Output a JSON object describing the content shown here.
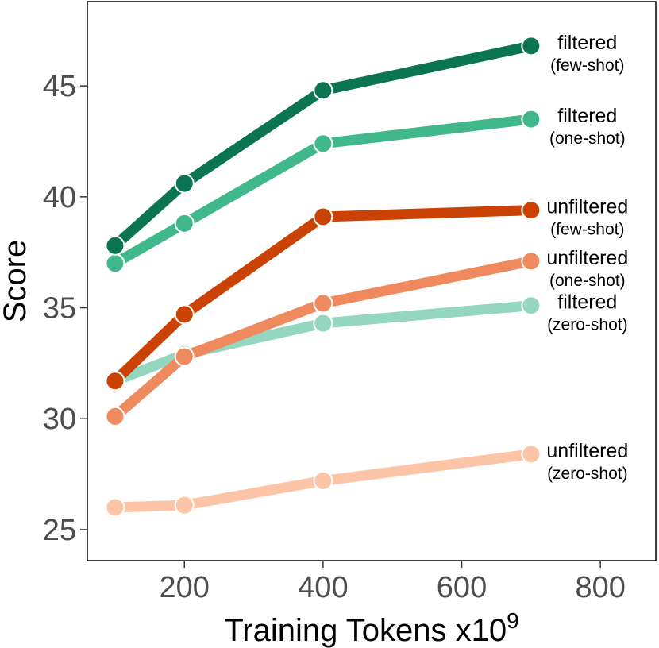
{
  "chart_data": {
    "type": "line",
    "xlabel": "Training Tokens x10",
    "xlabel_superscript": "9",
    "ylabel": "Score",
    "xlim": [
      60,
      880
    ],
    "ylim": [
      23.6,
      48.8
    ],
    "xticks": [
      200,
      400,
      600,
      800
    ],
    "yticks": [
      25,
      30,
      35,
      40,
      45
    ],
    "grid": false,
    "legend": "direct labels at line ends",
    "series": [
      {
        "name": "filtered",
        "detail": "(few-shot)",
        "color": "#0b7553",
        "x": [
          100,
          200,
          400,
          700
        ],
        "y": [
          37.8,
          40.6,
          44.8,
          46.8
        ]
      },
      {
        "name": "filtered",
        "detail": "(one-shot)",
        "color": "#41b78c",
        "x": [
          100,
          200,
          400,
          700
        ],
        "y": [
          37.0,
          38.8,
          42.4,
          43.5
        ]
      },
      {
        "name": "unfiltered",
        "detail": "(few-shot)",
        "color": "#ca4304",
        "x": [
          100,
          200,
          400,
          700
        ],
        "y": [
          31.7,
          34.7,
          39.1,
          39.4
        ]
      },
      {
        "name": "unfiltered",
        "detail": "(one-shot)",
        "color": "#ef8a5e",
        "x": [
          100,
          200,
          400,
          700
        ],
        "y": [
          30.1,
          32.8,
          35.2,
          37.1
        ]
      },
      {
        "name": "filtered",
        "detail": "(zero-shot)",
        "color": "#94d6bf",
        "x": [
          100,
          200,
          400,
          700
        ],
        "y": [
          31.7,
          32.9,
          34.3,
          35.1
        ]
      },
      {
        "name": "unfiltered",
        "detail": "(zero-shot)",
        "color": "#fdc5a8",
        "x": [
          100,
          200,
          400,
          700
        ],
        "y": [
          26.0,
          26.1,
          27.2,
          28.4
        ]
      }
    ]
  }
}
